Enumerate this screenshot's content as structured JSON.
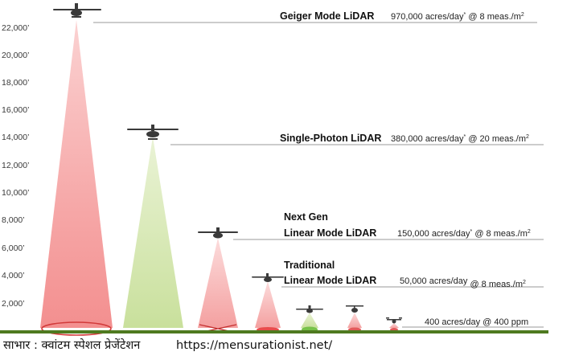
{
  "y_axis": {
    "ticks": [
      "22,000’",
      "20,000’",
      "18,000’",
      "16,000’",
      "14,000’",
      "12,000’",
      "10,000’",
      "8,000’",
      "6,000’",
      "4,000’",
      "2,000’"
    ]
  },
  "systems": [
    {
      "name_lines": [
        "Geiger Mode LiDAR"
      ],
      "rate": "970,000 acres/day",
      "rate_mark": "*",
      "density": "@ 8 meas./m",
      "density_sup": "2"
    },
    {
      "name_lines": [
        "Single-Photon LiDAR"
      ],
      "rate": "380,000 acres/day",
      "rate_mark": "*",
      "density": "@ 20 meas./m",
      "density_sup": "2"
    },
    {
      "name_lines": [
        "Next Gen",
        "Linear Mode LiDAR"
      ],
      "rate": "150,000 acres/day",
      "rate_mark": "*",
      "density": "@ 8 meas./m",
      "density_sup": "2"
    },
    {
      "name_lines": [
        "Traditional",
        "Linear Mode LiDAR"
      ],
      "rate": "50,000 acres/day",
      "rate_mark": "",
      "density": "@ 8 meas./m",
      "density_sup": "2"
    },
    {
      "name_lines": [],
      "rate": "400 acres/day",
      "rate_mark": "",
      "density": "@ 400 ppm",
      "density_sup": ""
    }
  ],
  "credit": {
    "label": "साभार : क्वांटम स्पेशल प्रेजेंटेशन",
    "url": "https://mensurationist.net/"
  },
  "colors": {
    "red_beam": "#f7a6a6",
    "green_beam": "#d2e5ab",
    "red_footprint": "#d23a3a",
    "green_footprint": "#6dbb3c",
    "ground": "#4e7a20"
  }
}
